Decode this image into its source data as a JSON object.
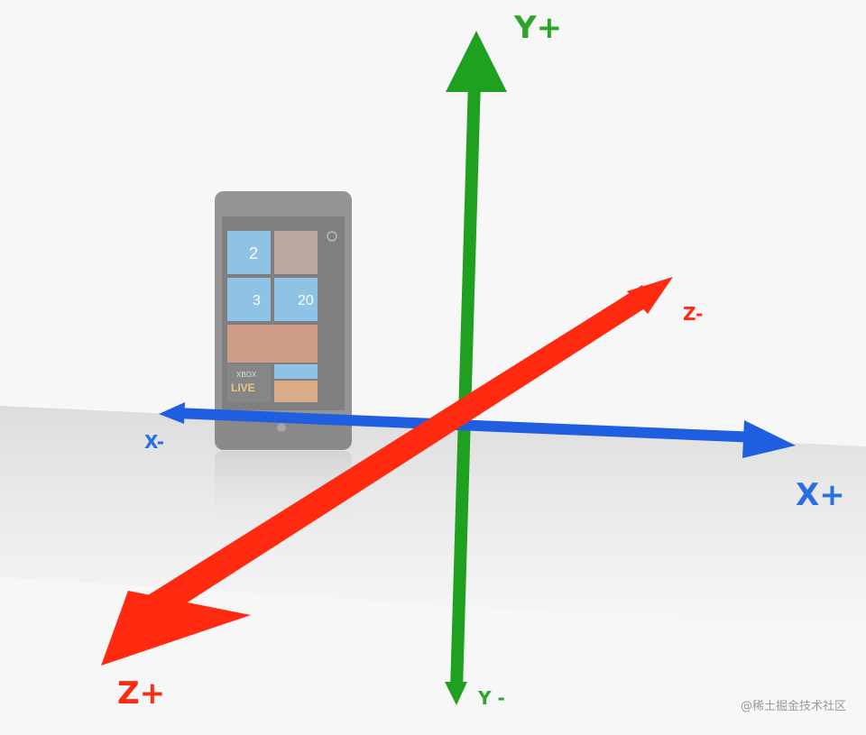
{
  "axes": {
    "y_positive": "Y+",
    "y_negative": "Y -",
    "x_positive": "X+",
    "x_negative": "X-",
    "z_positive": "Z+",
    "z_negative": "Z-"
  },
  "phone": {
    "tile_phone_count": "2",
    "tile_messages_count": "3",
    "tile_mail_count": "20",
    "xbox_text_top": "XBOX",
    "xbox_text_bottom": "LIVE"
  },
  "watermark": "@稀土掘金技术社区",
  "colors": {
    "y_axis": "#20a020",
    "x_axis": "#1f5ee0",
    "z_axis": "#ff2a10",
    "tile": "#3a9ad9"
  }
}
